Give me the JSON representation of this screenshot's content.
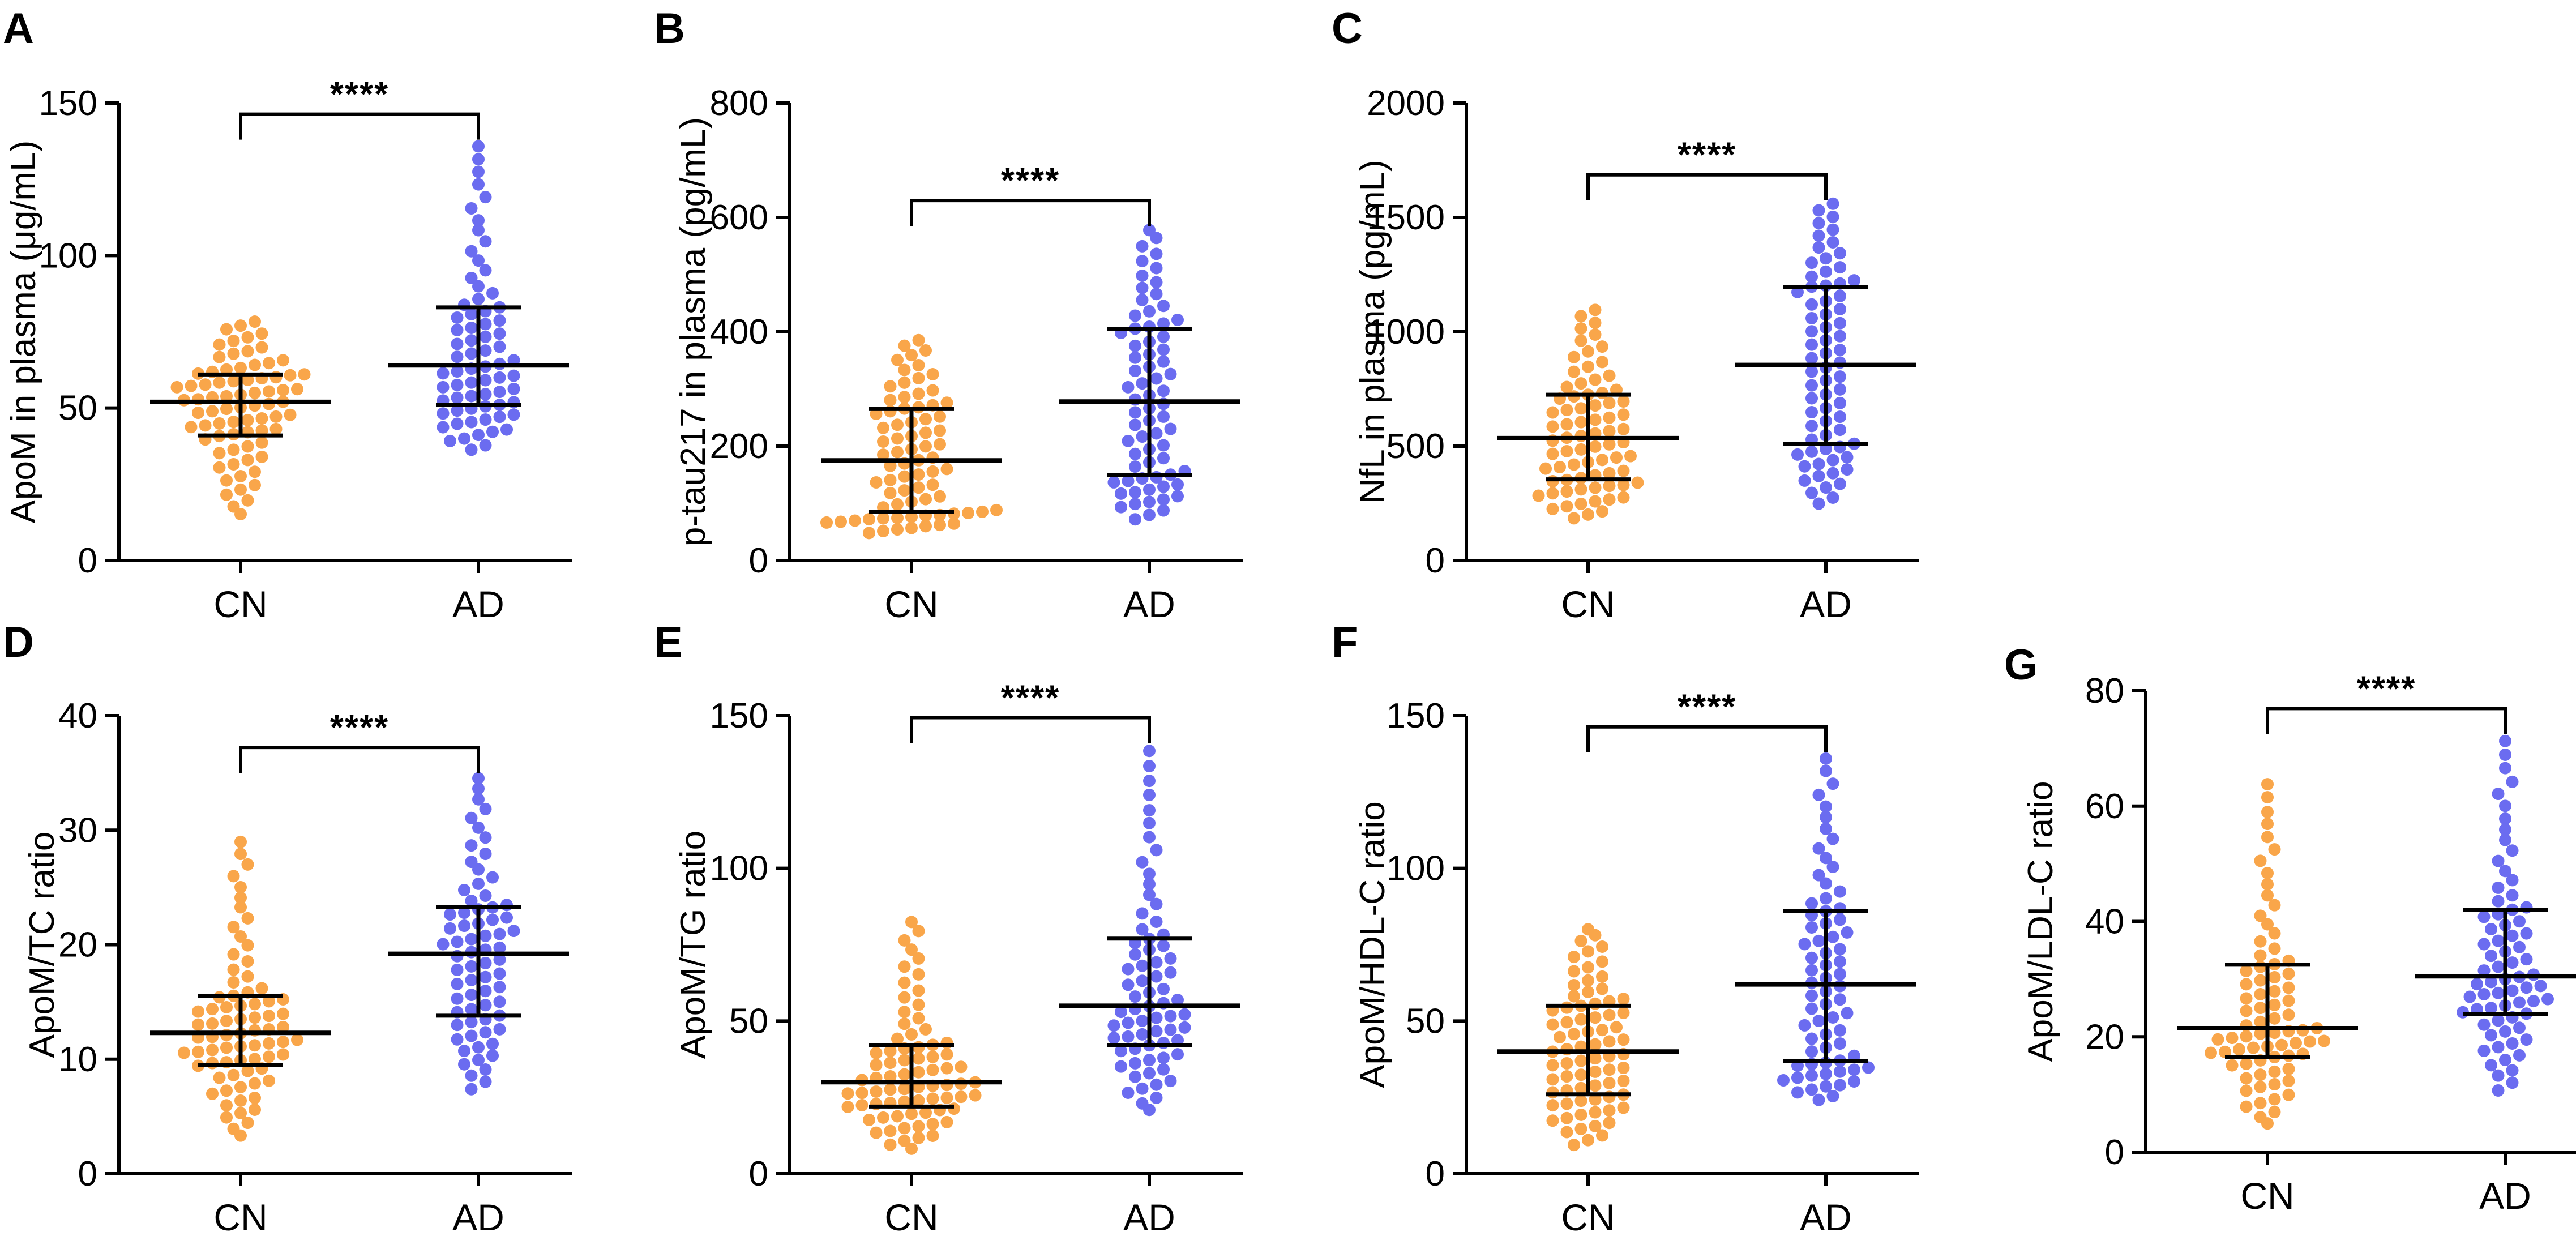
{
  "figure": {
    "group_colors": {
      "CN": "#f9a64a",
      "AD": "#6b6cf0"
    },
    "ink_color": "#000000"
  },
  "chart_data": [
    {
      "panel": "A",
      "type": "scatter",
      "subtype": "dot-plot with median and IQR",
      "ylabel": "ApoM in plasma (μg/mL)",
      "xlabel": "",
      "ylim": [
        0,
        150
      ],
      "yticks": [
        "0",
        "50",
        "100",
        "150"
      ],
      "categories": [
        "CN",
        "AD"
      ],
      "series": [
        {
          "name": "CN",
          "n": 75,
          "median": 52,
          "q1": 41,
          "q3": 61,
          "min": 13,
          "max": 79
        },
        {
          "name": "AD",
          "n": 70,
          "median": 64,
          "q1": 51,
          "q3": 83,
          "min": 35,
          "max": 138
        }
      ],
      "significance": "****"
    },
    {
      "panel": "B",
      "type": "scatter",
      "subtype": "dot-plot with median and IQR",
      "ylabel": "p-tau217 in plasma (pg/mL)",
      "xlabel": "",
      "ylim": [
        0,
        800
      ],
      "yticks": [
        "0",
        "200",
        "400",
        "600",
        "800"
      ],
      "categories": [
        "CN",
        "AD"
      ],
      "series": [
        {
          "name": "CN",
          "n": 75,
          "median": 175,
          "q1": 85,
          "q3": 265,
          "min": 45,
          "max": 390
        },
        {
          "name": "AD",
          "n": 70,
          "median": 278,
          "q1": 150,
          "q3": 405,
          "min": 65,
          "max": 585
        }
      ],
      "significance": "****"
    },
    {
      "panel": "C",
      "type": "scatter",
      "subtype": "dot-plot with median and IQR",
      "ylabel": "NfL in plasma (pg/mL)",
      "xlabel": "",
      "ylim": [
        0,
        2000
      ],
      "yticks": [
        "0",
        "500",
        "1000",
        "1500",
        "2000"
      ],
      "categories": [
        "CN",
        "AD"
      ],
      "series": [
        {
          "name": "CN",
          "n": 75,
          "median": 535,
          "q1": 355,
          "q3": 725,
          "min": 170,
          "max": 1110
        },
        {
          "name": "AD",
          "n": 70,
          "median": 855,
          "q1": 510,
          "q3": 1195,
          "min": 225,
          "max": 1575
        }
      ],
      "significance": "****"
    },
    {
      "panel": "D",
      "type": "scatter",
      "subtype": "dot-plot with median and IQR",
      "ylabel": "ApoM/TC ratio",
      "xlabel": "",
      "ylim": [
        0,
        40
      ],
      "yticks": [
        "0",
        "10",
        "20",
        "30",
        "40"
      ],
      "categories": [
        "CN",
        "AD"
      ],
      "series": [
        {
          "name": "CN",
          "n": 75,
          "median": 12.3,
          "q1": 9.5,
          "q3": 15.5,
          "min": 2.8,
          "max": 29.5
        },
        {
          "name": "AD",
          "n": 70,
          "median": 19.2,
          "q1": 13.8,
          "q3": 23.3,
          "min": 6.8,
          "max": 35
        }
      ],
      "significance": "****"
    },
    {
      "panel": "E",
      "type": "scatter",
      "subtype": "dot-plot with median and IQR",
      "ylabel": "ApoM/TG ratio",
      "xlabel": "",
      "ylim": [
        0,
        150
      ],
      "yticks": [
        "0",
        "50",
        "100",
        "150"
      ],
      "categories": [
        "CN",
        "AD"
      ],
      "series": [
        {
          "name": "CN",
          "n": 75,
          "median": 30,
          "q1": 22,
          "q3": 42,
          "min": 7,
          "max": 84
        },
        {
          "name": "AD",
          "n": 70,
          "median": 55,
          "q1": 42,
          "q3": 77,
          "min": 19,
          "max": 141
        }
      ],
      "significance": "****"
    },
    {
      "panel": "F",
      "type": "scatter",
      "subtype": "dot-plot with median and IQR",
      "ylabel": "ApoM/HDL-C ratio",
      "xlabel": "",
      "ylim": [
        0,
        150
      ],
      "yticks": [
        "0",
        "50",
        "100",
        "150"
      ],
      "categories": [
        "CN",
        "AD"
      ],
      "series": [
        {
          "name": "CN",
          "n": 75,
          "median": 40,
          "q1": 26,
          "q3": 55,
          "min": 8,
          "max": 81
        },
        {
          "name": "AD",
          "n": 70,
          "median": 62,
          "q1": 37,
          "q3": 86,
          "min": 23,
          "max": 138
        }
      ],
      "significance": "****"
    },
    {
      "panel": "G",
      "type": "scatter",
      "subtype": "dot-plot with median and IQR",
      "ylabel": "ApoM/LDL-C ratio",
      "xlabel": "",
      "ylim": [
        0,
        80
      ],
      "yticks": [
        "0",
        "20",
        "40",
        "60",
        "80"
      ],
      "categories": [
        "CN",
        "AD"
      ],
      "series": [
        {
          "name": "CN",
          "n": 75,
          "median": 21.5,
          "q1": 16.5,
          "q3": 32.5,
          "min": 4,
          "max": 65
        },
        {
          "name": "AD",
          "n": 70,
          "median": 30.5,
          "q1": 24,
          "q3": 42,
          "min": 9.5,
          "max": 72.5
        }
      ],
      "significance": "****"
    }
  ]
}
